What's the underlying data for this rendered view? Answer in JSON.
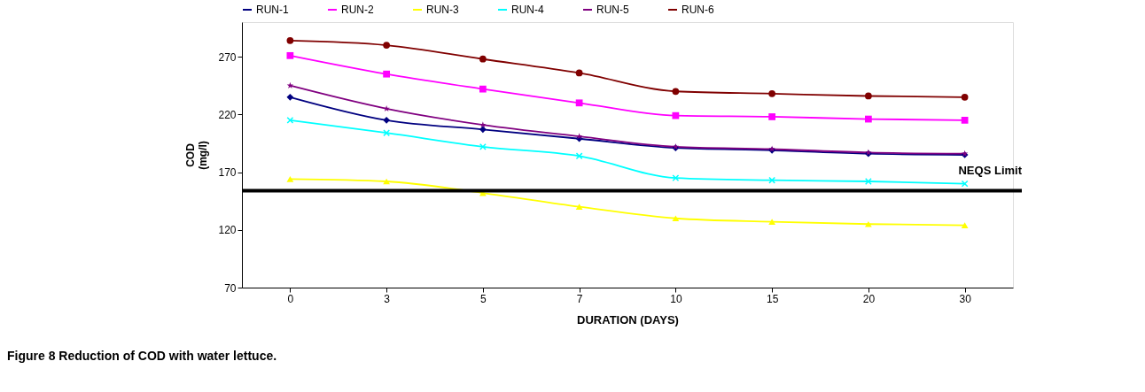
{
  "chart_data": {
    "type": "line",
    "xlabel": "DURATION (DAYS)",
    "ylabel": "COD (mg/l)",
    "categories": [
      "0",
      "3",
      "5",
      "7",
      "10",
      "15",
      "20",
      "30"
    ],
    "series": [
      {
        "name": "RUN-1",
        "color": "#000080",
        "marker": "diamond",
        "values": [
          235,
          215,
          207,
          199,
          191,
          189,
          186,
          185
        ]
      },
      {
        "name": "RUN-2",
        "color": "#ff00ff",
        "marker": "square",
        "values": [
          271,
          255,
          242,
          230,
          219,
          218,
          216,
          215
        ]
      },
      {
        "name": "RUN-3",
        "color": "#ffff00",
        "marker": "triangle",
        "values": [
          164,
          162,
          152,
          140,
          130,
          127,
          125,
          124
        ]
      },
      {
        "name": "RUN-4",
        "color": "#00ffff",
        "marker": "cross",
        "values": [
          215,
          204,
          192,
          184,
          165,
          163,
          162,
          160
        ]
      },
      {
        "name": "RUN-5",
        "color": "#800080",
        "marker": "star",
        "values": [
          245,
          225,
          211,
          201,
          192,
          190,
          187,
          186
        ]
      },
      {
        "name": "RUN-6",
        "color": "#800000",
        "marker": "circle",
        "values": [
          284,
          280,
          268,
          256,
          240,
          238,
          236,
          235
        ]
      }
    ],
    "ylim": [
      70,
      300
    ],
    "yticks": [
      70,
      120,
      170,
      220,
      270
    ],
    "grid": false,
    "legend": "top",
    "line_style": "solid",
    "ref_lines": [
      {
        "axis": "y",
        "value": 154,
        "label": "NEQS Limit",
        "color": "#000000"
      }
    ],
    "annotations": [
      "Figure 8 Reduction of COD with water lettuce."
    ]
  }
}
